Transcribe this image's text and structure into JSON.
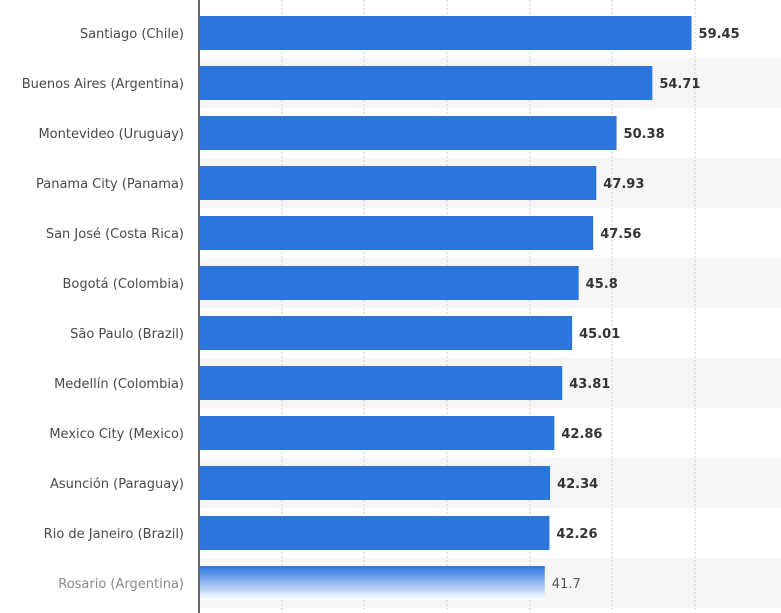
{
  "chart_data": {
    "type": "bar",
    "orientation": "horizontal",
    "categories": [
      "Santiago (Chile)",
      "Buenos Aires (Argentina)",
      "Montevideo (Uruguay)",
      "Panama City (Panama)",
      "San José (Costa Rica)",
      "Bogotá (Colombia)",
      "São Paulo (Brazil)",
      "Medellín (Colombia)",
      "Mexico City (Mexico)",
      "Asunción (Paraguay)",
      "Rio de Janeiro (Brazil)",
      "Rosario (Argentina)"
    ],
    "values": [
      59.45,
      54.71,
      50.38,
      47.93,
      47.56,
      45.8,
      45.01,
      43.81,
      42.86,
      42.34,
      42.26,
      41.7
    ],
    "value_labels": [
      "59.45",
      "54.71",
      "50.38",
      "47.93",
      "47.56",
      "45.8",
      "45.01",
      "43.81",
      "42.86",
      "42.34",
      "42.26",
      "41.7"
    ],
    "title": "",
    "xlabel": "",
    "ylabel": "",
    "xlim": [
      0,
      60
    ],
    "grid": true,
    "legend": "none",
    "bar_color": "#2a76dd",
    "faded_last_bar": true
  }
}
